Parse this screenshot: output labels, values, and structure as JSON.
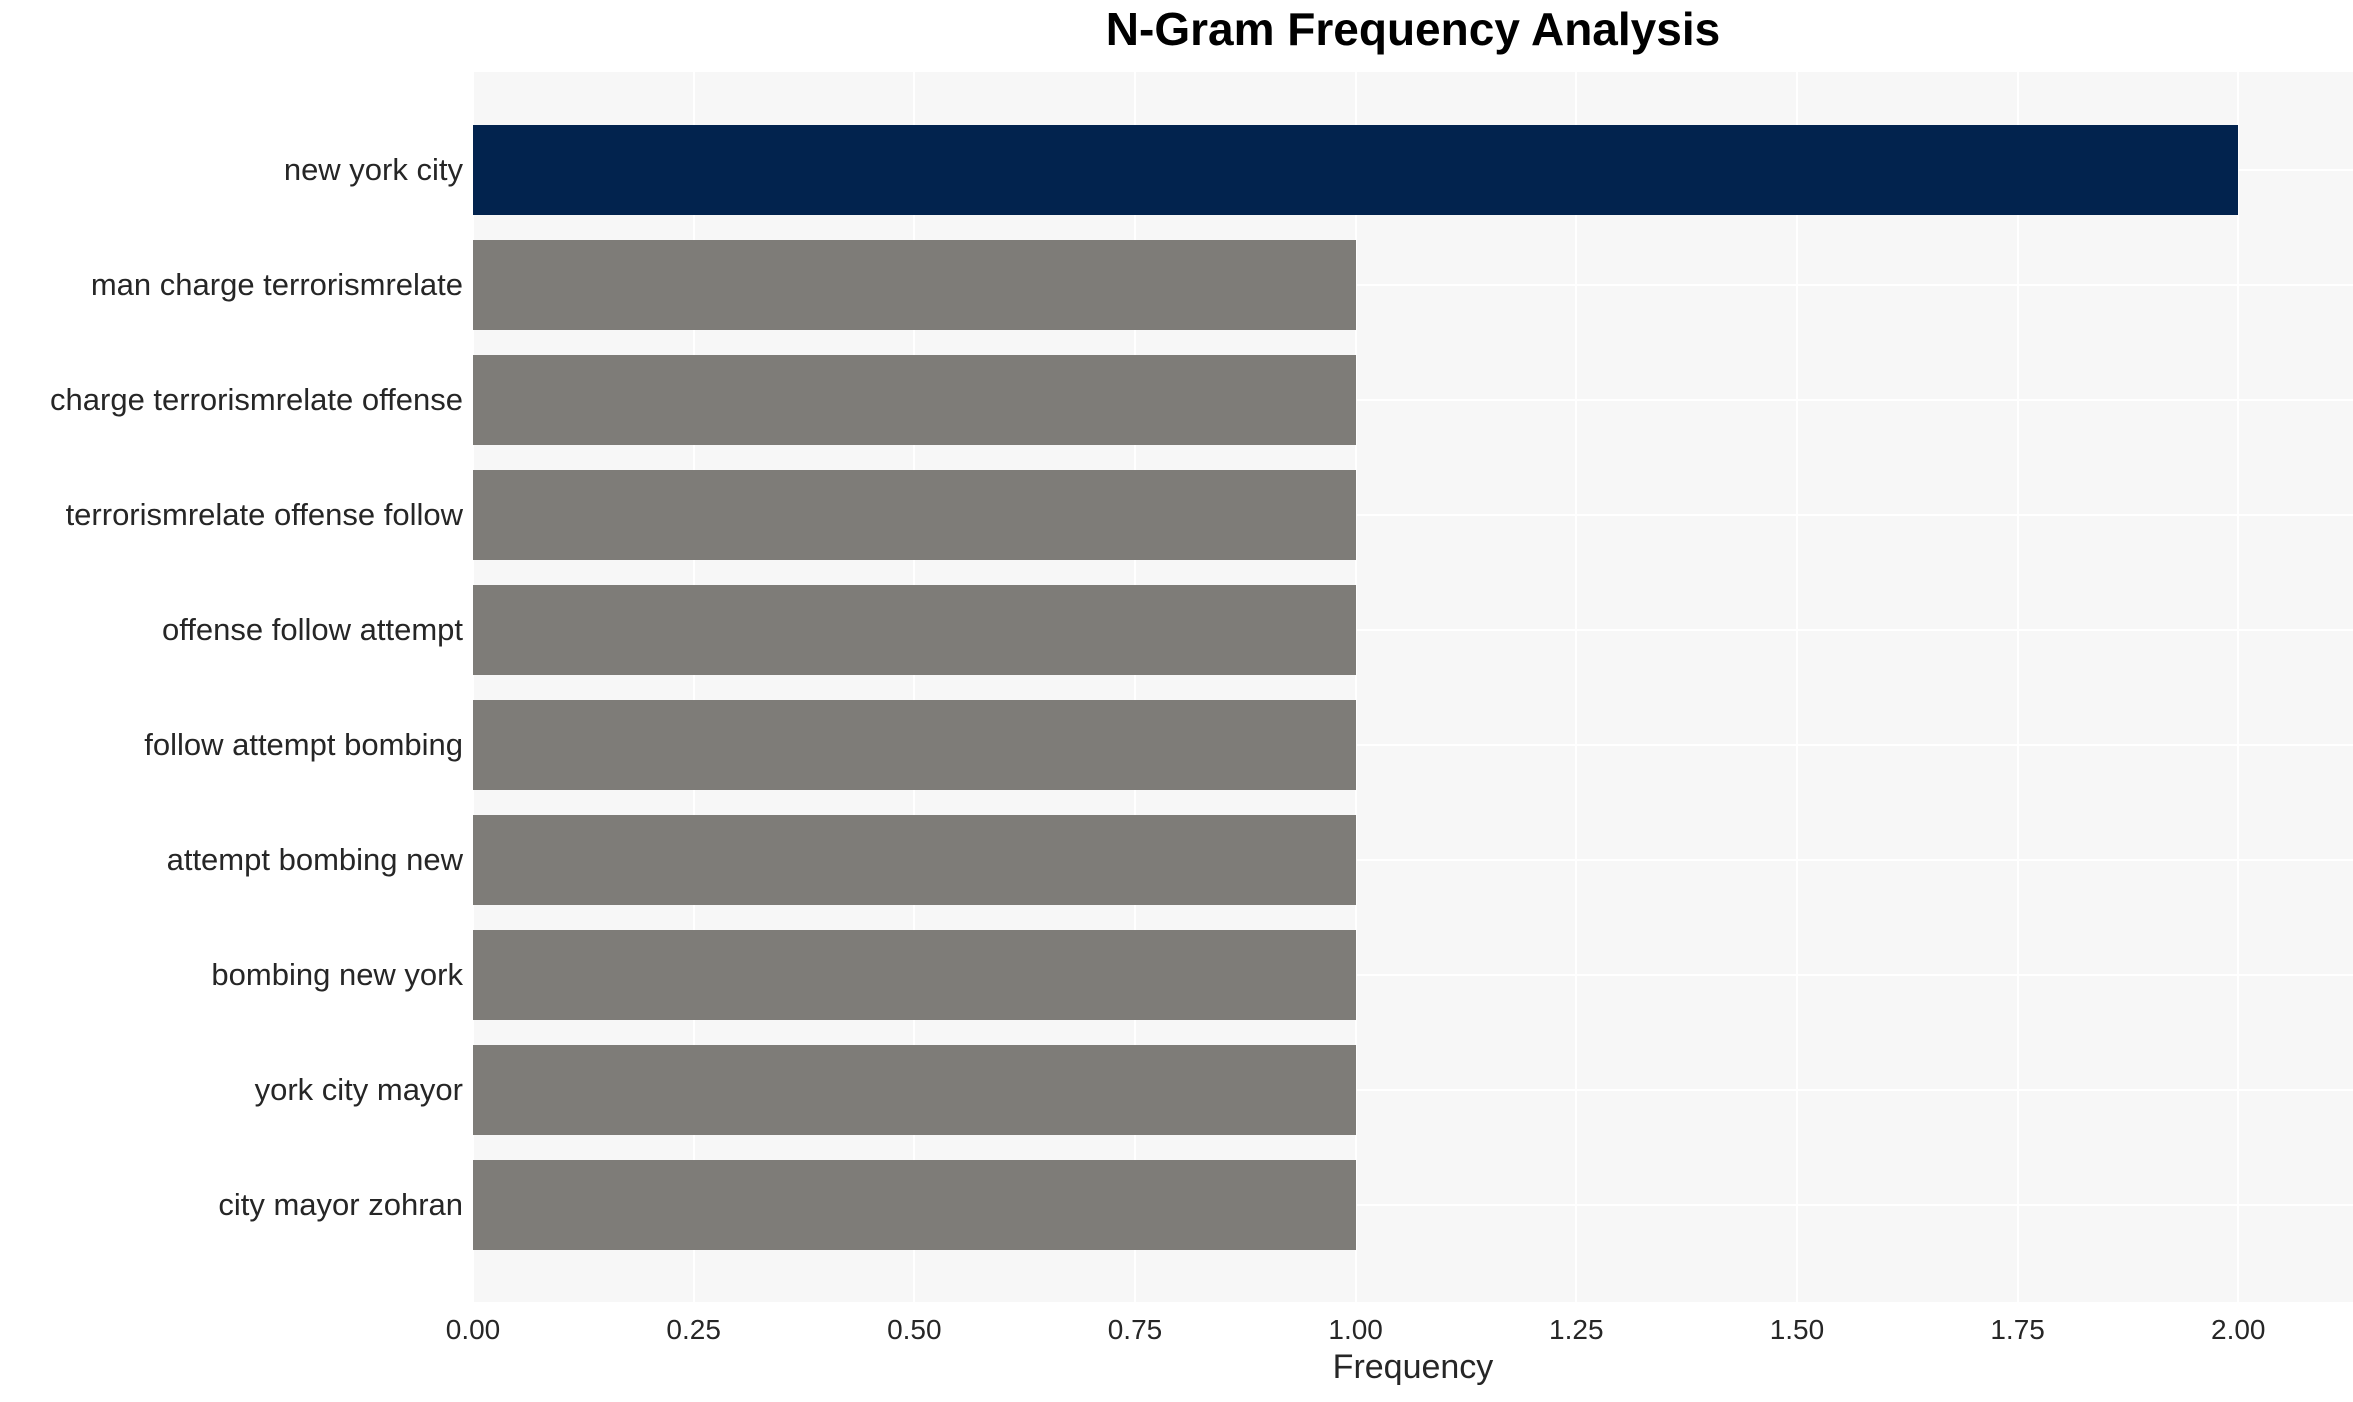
{
  "chart_data": {
    "type": "bar",
    "orientation": "horizontal",
    "title": "N-Gram Frequency Analysis",
    "xlabel": "Frequency",
    "ylabel": "",
    "categories": [
      "new york city",
      "man charge terrorismrelate",
      "charge terrorismrelate offense",
      "terrorismrelate offense follow",
      "offense follow attempt",
      "follow attempt bombing",
      "attempt bombing new",
      "bombing new york",
      "york city mayor",
      "city mayor zohran"
    ],
    "values": [
      2.0,
      1.0,
      1.0,
      1.0,
      1.0,
      1.0,
      1.0,
      1.0,
      1.0,
      1.0
    ],
    "bar_colors": [
      "#02234e",
      "#7e7c78",
      "#7e7c78",
      "#7e7c78",
      "#7e7c78",
      "#7e7c78",
      "#7e7c78",
      "#7e7c78",
      "#7e7c78",
      "#7e7c78"
    ],
    "xlim": [
      0,
      2.13
    ],
    "xticks": [
      0.0,
      0.25,
      0.5,
      0.75,
      1.0,
      1.25,
      1.5,
      1.75,
      2.0
    ],
    "xtick_labels": [
      "0.00",
      "0.25",
      "0.50",
      "0.75",
      "1.00",
      "1.25",
      "1.50",
      "1.75",
      "2.00"
    ],
    "grid": true,
    "legend_position": "none"
  },
  "colors": {
    "plot_background": "#f7f7f7",
    "grid_color": "#ffffff",
    "highlight_bar": "#02234e",
    "default_bar": "#7e7c78",
    "text": "#262626",
    "title_text": "#000000",
    "figure_background": "#ffffff"
  }
}
